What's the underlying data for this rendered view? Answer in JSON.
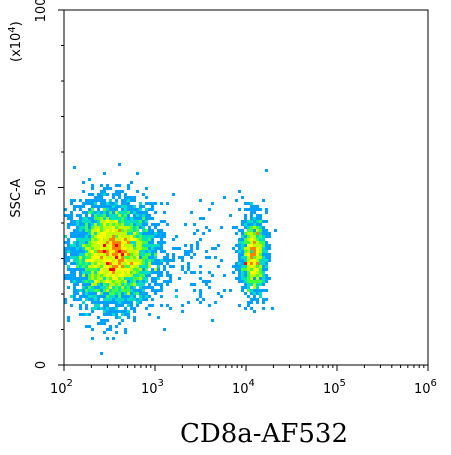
{
  "chart_data": {
    "type": "scatter",
    "style": "flow-cytometry-density",
    "xlabel": "CD8a-AF532",
    "ylabel": "SSC-A",
    "y_scale_label": "(x10",
    "y_scale_exp": "4",
    "y_scale_close": ")",
    "x_scale": "log",
    "xlim": [
      100,
      1000000
    ],
    "ylim": [
      0,
      100
    ],
    "x_ticks": [
      {
        "base": "10",
        "exp": "2",
        "value": 100
      },
      {
        "base": "10",
        "exp": "3",
        "value": 1000
      },
      {
        "base": "10",
        "exp": "4",
        "value": 10000
      },
      {
        "base": "10",
        "exp": "5",
        "value": 100000
      },
      {
        "base": "10",
        "exp": "6",
        "value": 1000000
      }
    ],
    "y_ticks": [
      {
        "label": "0",
        "value": 0
      },
      {
        "label": "50",
        "value": 50
      },
      {
        "label": "100",
        "value": 100
      }
    ],
    "grid": false,
    "colormap": [
      "#0000ff",
      "#00a0ff",
      "#00e0c0",
      "#40ff40",
      "#c0ff00",
      "#ffff00",
      "#ff8000",
      "#ff0000"
    ],
    "populations": [
      {
        "x_center": 350,
        "x_log_sd": 0.22,
        "y_center": 31,
        "y_sd": 7,
        "count": 5200
      },
      {
        "x_center": 12000,
        "x_log_sd": 0.07,
        "y_center": 31,
        "y_sd": 5.5,
        "count": 1200
      },
      {
        "x_center": 3000,
        "x_log_sd": 0.35,
        "y_center": 30,
        "y_sd": 8,
        "count": 140
      }
    ]
  }
}
